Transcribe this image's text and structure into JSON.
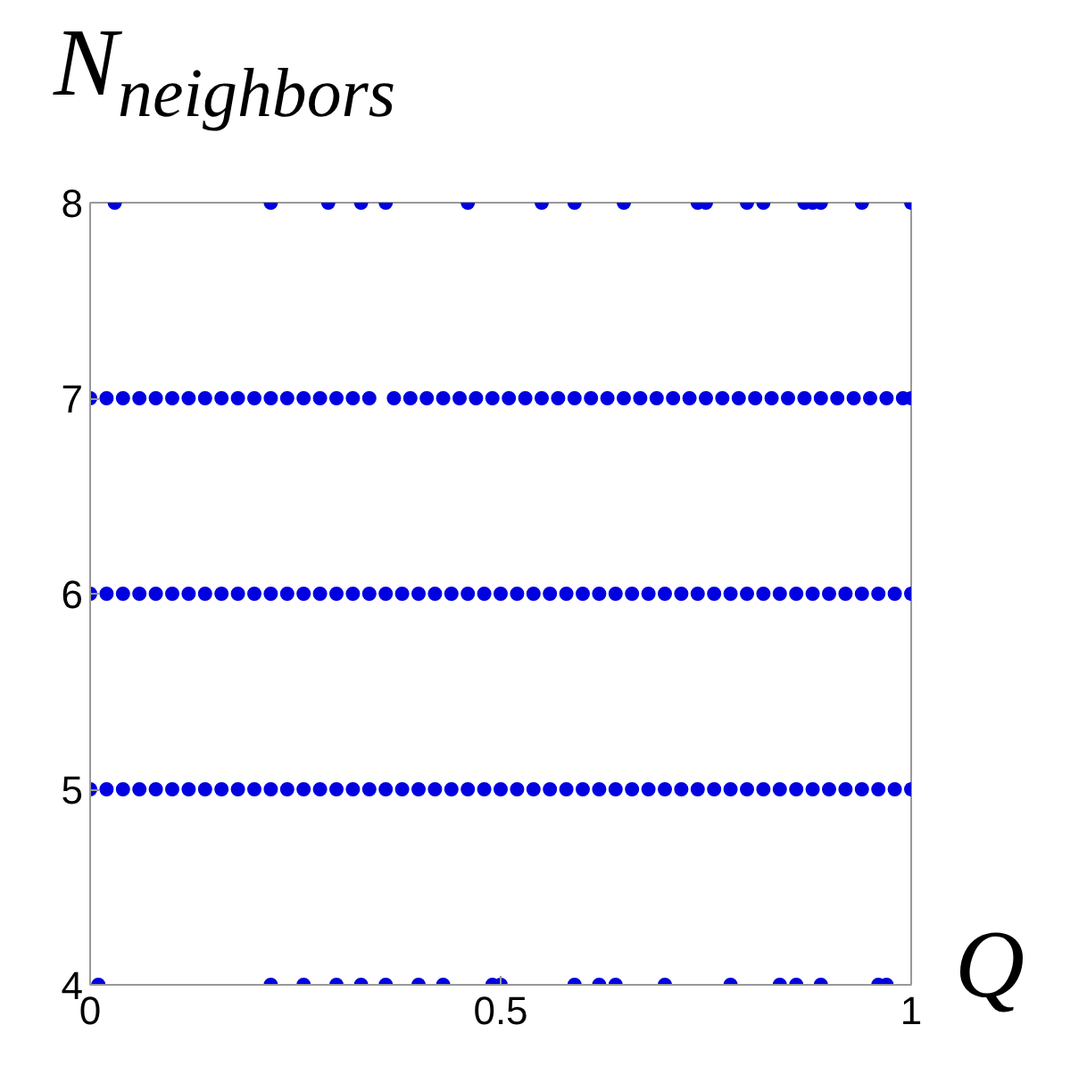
{
  "chart_data": {
    "type": "scatter",
    "xlabel": "Q",
    "ylabel": "N$_{neighbors}$",
    "xlim": [
      0,
      1
    ],
    "ylim": [
      4,
      8
    ],
    "xticks": [
      0,
      0.5,
      1
    ],
    "yticks": [
      4,
      5,
      6,
      7,
      8
    ],
    "grid": false,
    "marker": "circle",
    "series": [
      {
        "color": "#0000e0",
        "x": [
          0.03,
          0.22,
          0.29,
          0.33,
          0.36,
          0.46,
          0.55,
          0.59,
          0.65,
          0.74,
          0.75,
          0.8,
          0.82,
          0.87,
          0.88,
          0.89,
          0.94,
          1.0
        ],
        "values": [
          8,
          8,
          8,
          8,
          8,
          8,
          8,
          8,
          8,
          8,
          8,
          8,
          8,
          8,
          8,
          8,
          8,
          8
        ]
      },
      {
        "color": "#0000e0",
        "x": [
          0,
          0.02,
          0.04,
          0.06,
          0.08,
          0.1,
          0.12,
          0.14,
          0.16,
          0.18,
          0.2,
          0.22,
          0.24,
          0.26,
          0.28,
          0.3,
          0.32,
          0.34,
          0.37,
          0.39,
          0.41,
          0.43,
          0.45,
          0.47,
          0.49,
          0.51,
          0.53,
          0.55,
          0.57,
          0.59,
          0.61,
          0.63,
          0.65,
          0.67,
          0.69,
          0.71,
          0.73,
          0.75,
          0.77,
          0.79,
          0.81,
          0.83,
          0.85,
          0.87,
          0.89,
          0.91,
          0.93,
          0.95,
          0.97,
          0.99,
          1.0
        ],
        "values": [
          7,
          7,
          7,
          7,
          7,
          7,
          7,
          7,
          7,
          7,
          7,
          7,
          7,
          7,
          7,
          7,
          7,
          7,
          7,
          7,
          7,
          7,
          7,
          7,
          7,
          7,
          7,
          7,
          7,
          7,
          7,
          7,
          7,
          7,
          7,
          7,
          7,
          7,
          7,
          7,
          7,
          7,
          7,
          7,
          7,
          7,
          7,
          7,
          7,
          7,
          7
        ]
      },
      {
        "color": "#0000e0",
        "x": [
          0,
          0.02,
          0.04,
          0.06,
          0.08,
          0.1,
          0.12,
          0.14,
          0.16,
          0.18,
          0.2,
          0.22,
          0.24,
          0.26,
          0.28,
          0.3,
          0.32,
          0.34,
          0.36,
          0.38,
          0.4,
          0.42,
          0.44,
          0.46,
          0.48,
          0.5,
          0.52,
          0.54,
          0.56,
          0.58,
          0.6,
          0.62,
          0.64,
          0.66,
          0.68,
          0.7,
          0.72,
          0.74,
          0.76,
          0.78,
          0.8,
          0.82,
          0.84,
          0.86,
          0.88,
          0.9,
          0.92,
          0.94,
          0.96,
          0.98,
          1.0
        ],
        "values": [
          6,
          6,
          6,
          6,
          6,
          6,
          6,
          6,
          6,
          6,
          6,
          6,
          6,
          6,
          6,
          6,
          6,
          6,
          6,
          6,
          6,
          6,
          6,
          6,
          6,
          6,
          6,
          6,
          6,
          6,
          6,
          6,
          6,
          6,
          6,
          6,
          6,
          6,
          6,
          6,
          6,
          6,
          6,
          6,
          6,
          6,
          6,
          6,
          6,
          6,
          6
        ]
      },
      {
        "color": "#0000e0",
        "x": [
          0,
          0.02,
          0.04,
          0.06,
          0.08,
          0.1,
          0.12,
          0.14,
          0.16,
          0.18,
          0.2,
          0.22,
          0.24,
          0.26,
          0.28,
          0.3,
          0.32,
          0.34,
          0.36,
          0.38,
          0.4,
          0.42,
          0.44,
          0.46,
          0.48,
          0.5,
          0.52,
          0.54,
          0.56,
          0.58,
          0.6,
          0.62,
          0.64,
          0.66,
          0.68,
          0.7,
          0.72,
          0.74,
          0.76,
          0.78,
          0.8,
          0.82,
          0.84,
          0.86,
          0.88,
          0.9,
          0.92,
          0.94,
          0.96,
          0.98,
          1.0
        ],
        "values": [
          5,
          5,
          5,
          5,
          5,
          5,
          5,
          5,
          5,
          5,
          5,
          5,
          5,
          5,
          5,
          5,
          5,
          5,
          5,
          5,
          5,
          5,
          5,
          5,
          5,
          5,
          5,
          5,
          5,
          5,
          5,
          5,
          5,
          5,
          5,
          5,
          5,
          5,
          5,
          5,
          5,
          5,
          5,
          5,
          5,
          5,
          5,
          5,
          5,
          5,
          5
        ]
      },
      {
        "color": "#0000e0",
        "x": [
          0.01,
          0.22,
          0.26,
          0.3,
          0.33,
          0.36,
          0.4,
          0.43,
          0.49,
          0.5,
          0.59,
          0.62,
          0.64,
          0.7,
          0.78,
          0.84,
          0.86,
          0.89,
          0.96,
          0.97
        ],
        "values": [
          4,
          4,
          4,
          4,
          4,
          4,
          4,
          4,
          4,
          4,
          4,
          4,
          4,
          4,
          4,
          4,
          4,
          4,
          4,
          4
        ]
      }
    ]
  }
}
